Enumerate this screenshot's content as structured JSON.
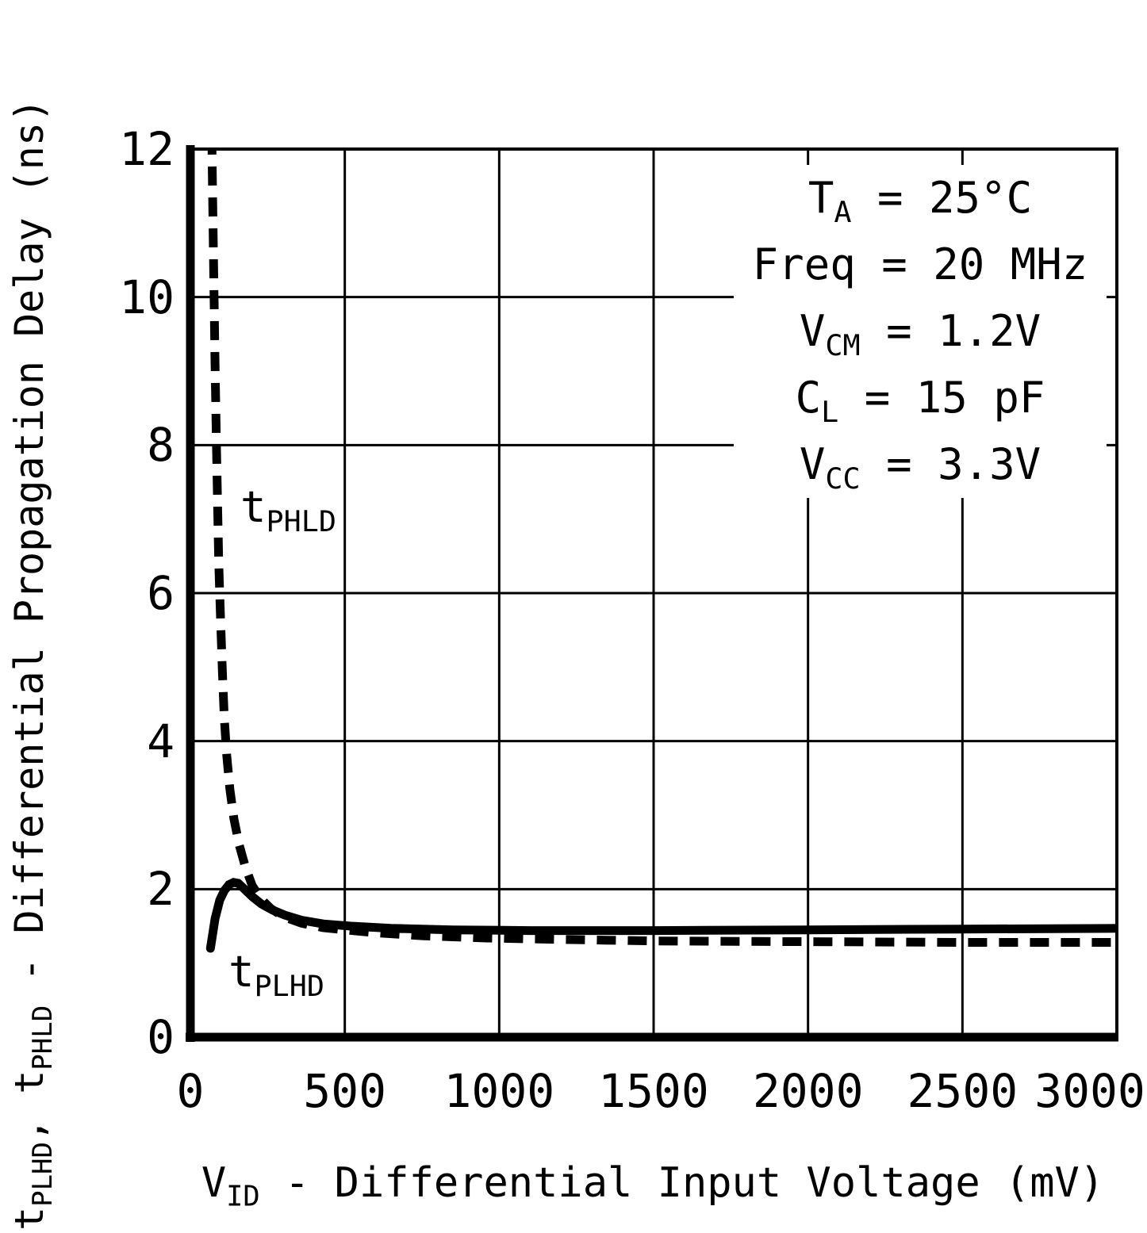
{
  "page": {
    "background": "#ffffff",
    "ink_color": "#000000"
  },
  "chart_data": {
    "type": "line",
    "title": "",
    "xlabel": {
      "pre": "V",
      "sub": "ID",
      "post": " - Differential Input Voltage (mV)"
    },
    "ylabel": {
      "pre": "t",
      "sub1": "PLHD",
      "mid": ", t",
      "sub2": "PHLD",
      "post": " - Differential Propagation Delay (ns)"
    },
    "xlim": [
      0,
      3000
    ],
    "ylim": [
      0,
      12
    ],
    "x_ticks": [
      0,
      500,
      1000,
      1500,
      2000,
      2500,
      3000
    ],
    "y_ticks": [
      0,
      2,
      4,
      6,
      8,
      10,
      12
    ],
    "grid": true,
    "legend_position": "none",
    "conditions": [
      {
        "pre": "T",
        "sub": "A",
        "post": " = 25°C"
      },
      {
        "pre": "Freq",
        "sub": "",
        "post": " = 20 MHz"
      },
      {
        "pre": "V",
        "sub": "CM",
        "post": " = 1.2V"
      },
      {
        "pre": "C",
        "sub": "L",
        "post": " = 15 pF"
      },
      {
        "pre": "V",
        "sub": "CC",
        "post": " = 3.3V"
      }
    ],
    "series": [
      {
        "name": "tPHLD",
        "label": {
          "pre": "t",
          "sub": "PHLD"
        },
        "style": "dashed",
        "x": [
          68,
          72,
          76,
          80,
          84,
          88,
          92,
          98,
          104,
          110,
          118,
          128,
          141,
          158,
          178,
          200,
          228,
          260,
          300,
          360,
          430,
          500,
          600,
          750,
          950,
          1200,
          1500,
          2000,
          2500,
          3000
        ],
        "y": [
          12.6,
          11.4,
          10.2,
          9.1,
          8.1,
          7.2,
          6.4,
          5.6,
          4.9,
          4.3,
          3.8,
          3.35,
          2.95,
          2.6,
          2.3,
          2.05,
          1.87,
          1.74,
          1.63,
          1.54,
          1.48,
          1.45,
          1.41,
          1.37,
          1.34,
          1.32,
          1.3,
          1.29,
          1.28,
          1.28
        ]
      },
      {
        "name": "tPLHD",
        "label": {
          "pre": "t",
          "sub": "PLHD"
        },
        "style": "solid",
        "x": [
          65,
          80,
          95,
          110,
          125,
          140,
          155,
          175,
          200,
          230,
          265,
          305,
          360,
          430,
          520,
          650,
          850,
          1100,
          1500,
          2000,
          2500,
          3000
        ],
        "y": [
          1.2,
          1.6,
          1.85,
          1.98,
          2.06,
          2.09,
          2.08,
          2.0,
          1.9,
          1.8,
          1.72,
          1.65,
          1.58,
          1.53,
          1.5,
          1.47,
          1.45,
          1.44,
          1.44,
          1.45,
          1.46,
          1.47
        ]
      }
    ]
  }
}
